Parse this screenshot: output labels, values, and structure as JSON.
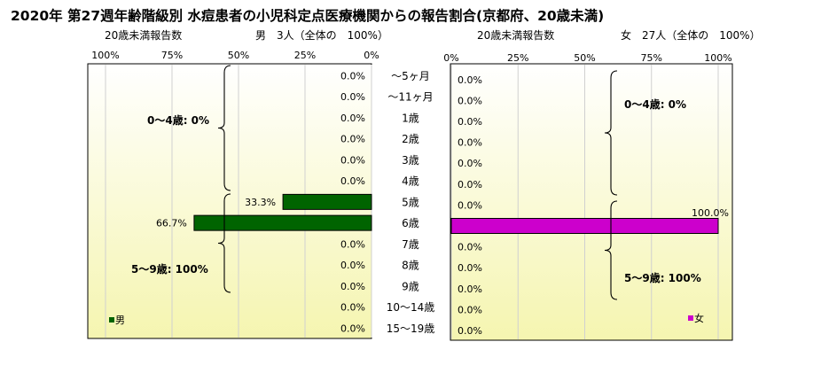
{
  "title": "2020年 第27週年齢階級別 水痘患者の小児科定点医療機関からの報告割合(京都府、20歳未満)",
  "colors": {
    "male": "#006400",
    "female": "#cc00cc",
    "plot_bg_top": "#ffffff",
    "plot_bg_bottom": "#f5f5b0"
  },
  "age_groups": [
    "～5ヶ月",
    "～11ヶ月",
    "1歳",
    "2歳",
    "3歳",
    "4歳",
    "5歳",
    "6歳",
    "7歳",
    "8歳",
    "9歳",
    "10～14歳",
    "15～19歳"
  ],
  "brackets": [
    {
      "label": "0～4歳: 0%"
    },
    {
      "label": "5～9歳: 100%"
    }
  ],
  "chart_data": [
    {
      "type": "bar",
      "orientation": "horizontal",
      "direction": "right-to-left",
      "header": "20歳未満報告数",
      "summary": "男　3人（全体の　100%）",
      "xlim": [
        0,
        100
      ],
      "ticks": [
        "0%",
        "25%",
        "50%",
        "75%",
        "100%"
      ],
      "categories": [
        "～5ヶ月",
        "～11ヶ月",
        "1歳",
        "2歳",
        "3歳",
        "4歳",
        "5歳",
        "6歳",
        "7歳",
        "8歳",
        "9歳",
        "10～14歳",
        "15～19歳"
      ],
      "series": [
        {
          "name": "男",
          "values": [
            0,
            0,
            0,
            0,
            0,
            0,
            33.3,
            66.7,
            0,
            0,
            0,
            0,
            0
          ],
          "labels": [
            "0.0%",
            "0.0%",
            "0.0%",
            "0.0%",
            "0.0%",
            "0.0%",
            "33.3%",
            "66.7%",
            "0.0%",
            "0.0%",
            "0.0%",
            "0.0%",
            "0.0%"
          ]
        }
      ],
      "grid": true,
      "legend": "bottom-left"
    },
    {
      "type": "bar",
      "orientation": "horizontal",
      "direction": "left-to-right",
      "header": "20歳未満報告数",
      "summary": "女　27人（全体の　100%）",
      "xlim": [
        0,
        100
      ],
      "ticks": [
        "0%",
        "25%",
        "50%",
        "75%",
        "100%"
      ],
      "categories": [
        "～5ヶ月",
        "～11ヶ月",
        "1歳",
        "2歳",
        "3歳",
        "4歳",
        "5歳",
        "6歳",
        "7歳",
        "8歳",
        "9歳",
        "10～14歳",
        "15～19歳"
      ],
      "series": [
        {
          "name": "女",
          "values": [
            0,
            0,
            0,
            0,
            0,
            0,
            0,
            100,
            0,
            0,
            0,
            0,
            0
          ],
          "labels": [
            "0.0%",
            "0.0%",
            "0.0%",
            "0.0%",
            "0.0%",
            "0.0%",
            "0.0%",
            "100.0%",
            "0.0%",
            "0.0%",
            "0.0%",
            "0.0%",
            "0.0%"
          ]
        }
      ],
      "grid": true,
      "legend": "bottom-right"
    }
  ]
}
